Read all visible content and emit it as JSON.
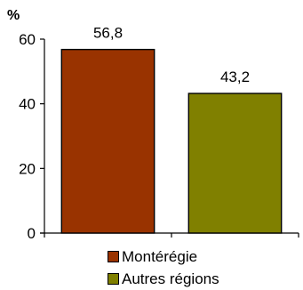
{
  "chart_data": {
    "type": "bar",
    "ylabel": "%",
    "xlabel": "",
    "categories": [
      "Montérégie",
      "Autres régions"
    ],
    "values": [
      56.8,
      43.2
    ],
    "data_labels": [
      "56,8",
      "43,2"
    ],
    "colors": [
      "#993300",
      "#808000"
    ],
    "ylim": [
      0,
      60
    ],
    "yticks": [
      0,
      20,
      40,
      60
    ],
    "grid": false,
    "legend_position": "bottom"
  }
}
